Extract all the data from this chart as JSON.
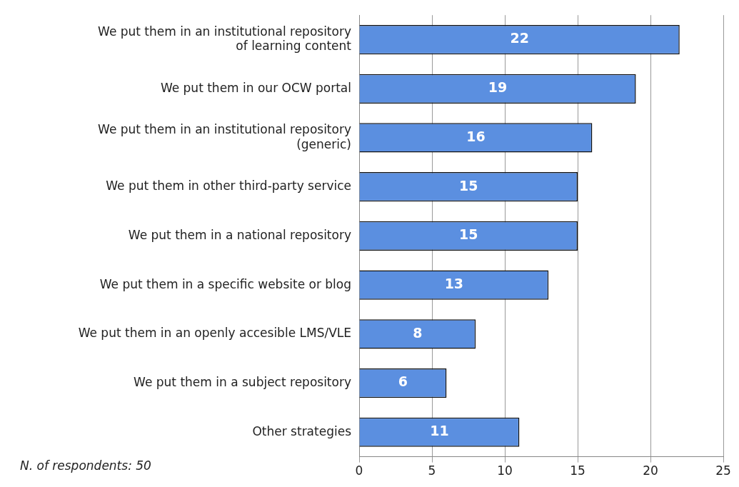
{
  "chart_data": {
    "type": "bar",
    "orientation": "horizontal",
    "categories": [
      "We put them in an institutional repository of learning content",
      "We put them in our OCW portal",
      "We put them in an institutional repository (generic)",
      "We put them in other third-party service",
      "We put them in a national repository",
      "We put them in a specific website or blog",
      "We put them in an openly accesible LMS/VLE",
      "We put them in a subject repository",
      "Other strategies"
    ],
    "values": [
      22,
      19,
      16,
      15,
      15,
      13,
      8,
      6,
      11
    ],
    "color": "#5b8fe0",
    "xlim": [
      0,
      25
    ],
    "xticks": [
      0,
      5,
      10,
      15,
      20,
      25
    ],
    "grid": "x",
    "data_labels": true,
    "legend": false,
    "annotations": [
      "N. of respondents: 50"
    ]
  }
}
